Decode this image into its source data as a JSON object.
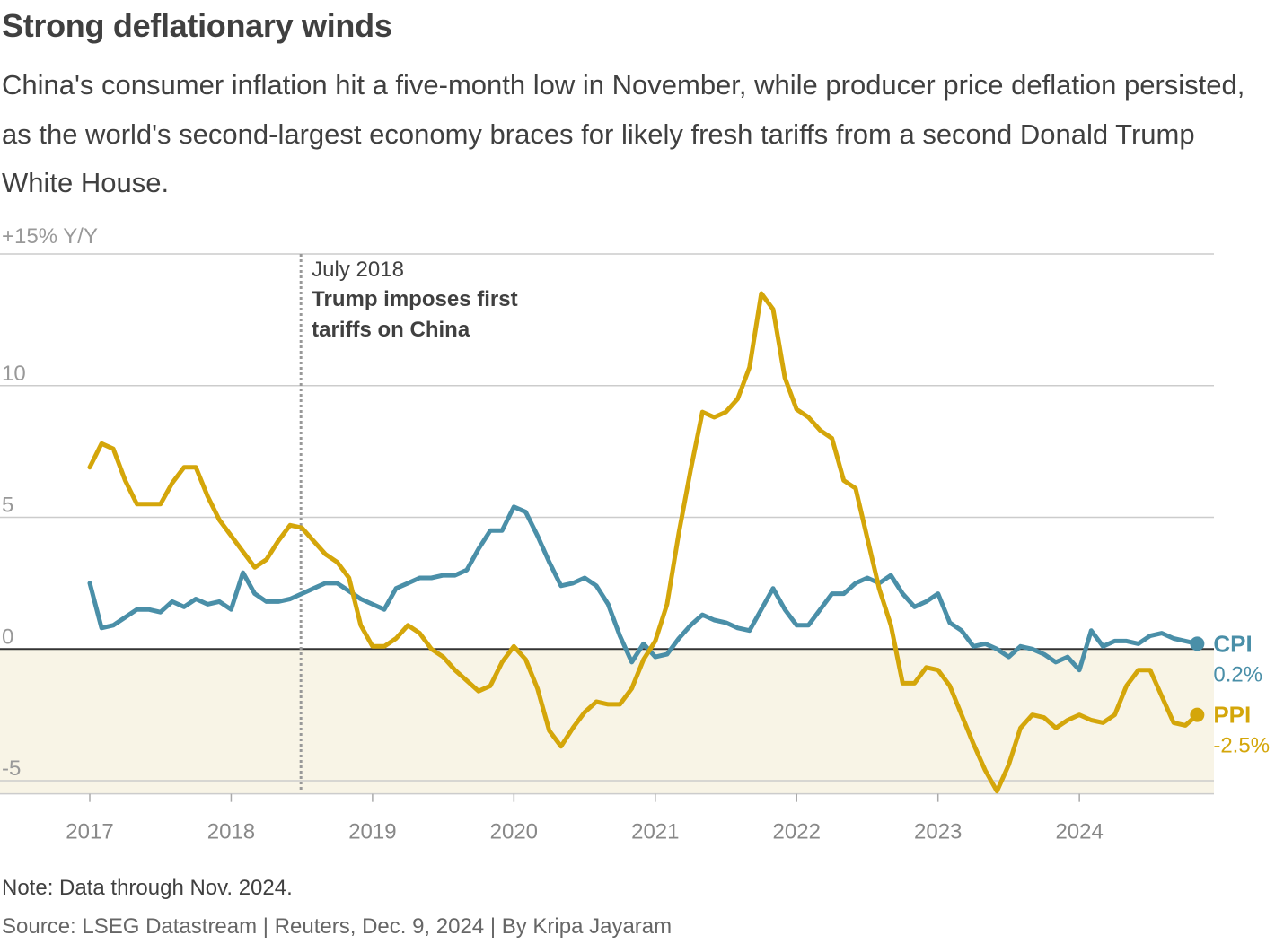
{
  "header": {
    "title": "Strong deflationary winds",
    "subtitle": "China's consumer inflation hit a five-month low in November, while producer price deflation persisted, as the world's second-largest economy braces for likely fresh tariffs from a second Donald Trump White House."
  },
  "footer": {
    "note": "Note: Data through Nov. 2024.",
    "source": "Source: LSEG Datastream | Reuters, Dec. 9, 2024 | By Kripa Jayaram"
  },
  "chart_data": {
    "type": "line",
    "title": "Strong deflationary winds",
    "xlabel": "",
    "ylabel": "+15% Y/Y",
    "ylim": [
      -5.5,
      15
    ],
    "yticks": [
      {
        "value": 10,
        "label": "10"
      },
      {
        "value": 5,
        "label": "5"
      },
      {
        "value": 0,
        "label": "0"
      },
      {
        "value": -5,
        "label": "-5"
      }
    ],
    "x_start": "2017-01",
    "x_end": "2024-11",
    "xticks": [
      "2017",
      "2018",
      "2019",
      "2020",
      "2021",
      "2022",
      "2023",
      "2024"
    ],
    "annotation": {
      "date": "2018-07",
      "line1": "July 2018",
      "line2": "Trump imposes first",
      "line3": "tariffs on China"
    },
    "negative_shading": "#f8f4e6",
    "series": [
      {
        "name": "CPI",
        "end_label": "0.2%",
        "color": "#4a8fa8",
        "values": [
          2.5,
          0.8,
          0.9,
          1.2,
          1.5,
          1.5,
          1.4,
          1.8,
          1.6,
          1.9,
          1.7,
          1.8,
          1.5,
          2.9,
          2.1,
          1.8,
          1.8,
          1.9,
          2.1,
          2.3,
          2.5,
          2.5,
          2.2,
          1.9,
          1.7,
          1.5,
          2.3,
          2.5,
          2.7,
          2.7,
          2.8,
          2.8,
          3.0,
          3.8,
          4.5,
          4.5,
          5.4,
          5.2,
          4.3,
          3.3,
          2.4,
          2.5,
          2.7,
          2.4,
          1.7,
          0.5,
          -0.5,
          0.2,
          -0.3,
          -0.2,
          0.4,
          0.9,
          1.3,
          1.1,
          1.0,
          0.8,
          0.7,
          1.5,
          2.3,
          1.5,
          0.9,
          0.9,
          1.5,
          2.1,
          2.1,
          2.5,
          2.7,
          2.5,
          2.8,
          2.1,
          1.6,
          1.8,
          2.1,
          1.0,
          0.7,
          0.1,
          0.2,
          0.0,
          -0.3,
          0.1,
          0.0,
          -0.2,
          -0.5,
          -0.3,
          -0.8,
          0.7,
          0.1,
          0.3,
          0.3,
          0.2,
          0.5,
          0.6,
          0.4,
          0.3,
          0.2
        ]
      },
      {
        "name": "PPI",
        "end_label": "-2.5%",
        "color": "#d4a60a",
        "values": [
          6.9,
          7.8,
          7.6,
          6.4,
          5.5,
          5.5,
          5.5,
          6.3,
          6.9,
          6.9,
          5.8,
          4.9,
          4.3,
          3.7,
          3.1,
          3.4,
          4.1,
          4.7,
          4.6,
          4.1,
          3.6,
          3.3,
          2.7,
          0.9,
          0.1,
          0.1,
          0.4,
          0.9,
          0.6,
          0.0,
          -0.3,
          -0.8,
          -1.2,
          -1.6,
          -1.4,
          -0.5,
          0.1,
          -0.4,
          -1.5,
          -3.1,
          -3.7,
          -3.0,
          -2.4,
          -2.0,
          -2.1,
          -2.1,
          -1.5,
          -0.4,
          0.3,
          1.7,
          4.4,
          6.8,
          9.0,
          8.8,
          9.0,
          9.5,
          10.7,
          13.5,
          12.9,
          10.3,
          9.1,
          8.8,
          8.3,
          8.0,
          6.4,
          6.1,
          4.2,
          2.3,
          0.9,
          -1.3,
          -1.3,
          -0.7,
          -0.8,
          -1.4,
          -2.5,
          -3.6,
          -4.6,
          -5.4,
          -4.4,
          -3.0,
          -2.5,
          -2.6,
          -3.0,
          -2.7,
          -2.5,
          -2.7,
          -2.8,
          -2.5,
          -1.4,
          -0.8,
          -0.8,
          -1.8,
          -2.8,
          -2.9,
          -2.5
        ]
      }
    ]
  }
}
